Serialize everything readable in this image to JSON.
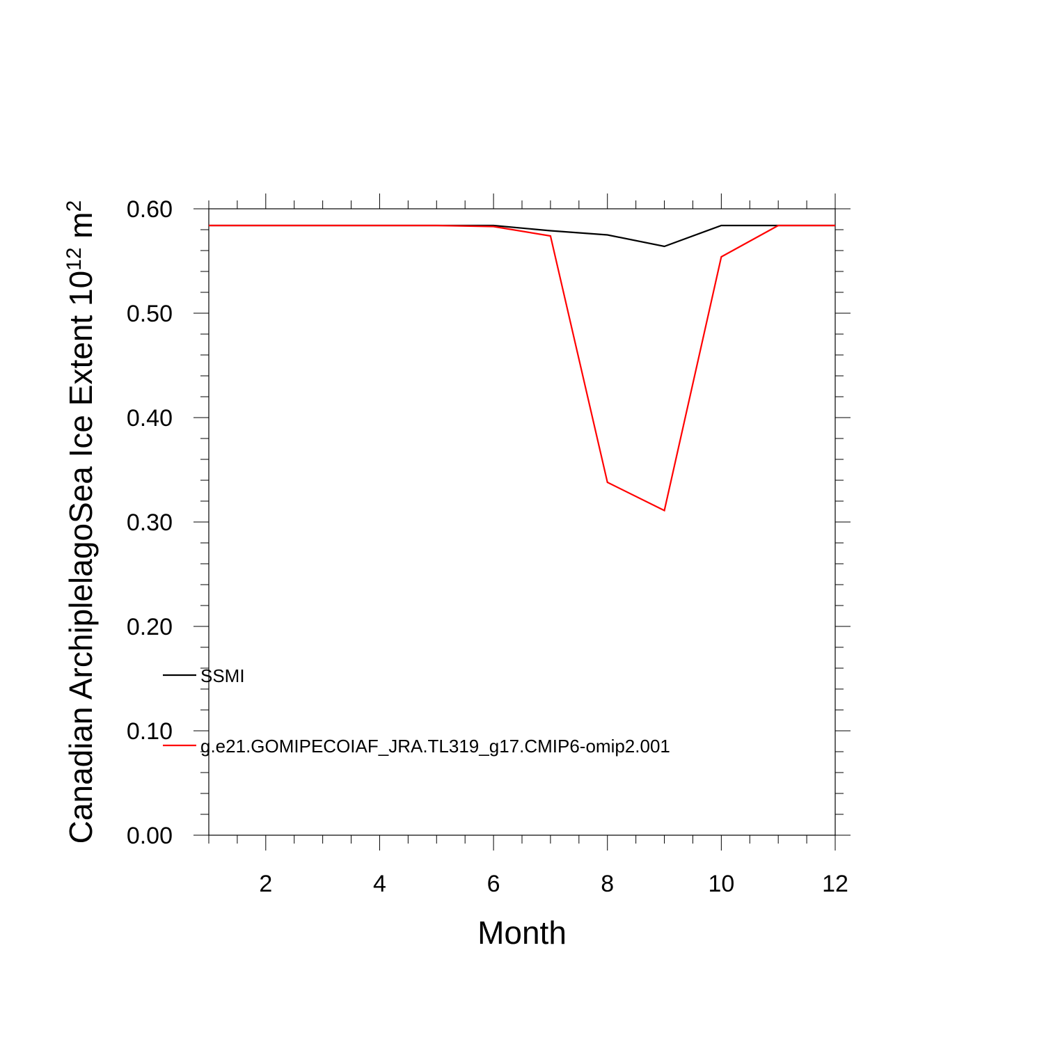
{
  "chart_data": {
    "type": "line",
    "xlabel": "Month",
    "ylabel": {
      "main": "Canadian ArchiplelagoSea Ice Extent 10",
      "exp1": "12",
      "unit": " m",
      "exp2": "2"
    },
    "xlim": [
      1,
      12
    ],
    "ylim": [
      0.0,
      0.6
    ],
    "x_ticks": [
      2,
      4,
      6,
      8,
      10,
      12
    ],
    "y_ticks": [
      0.0,
      0.1,
      0.2,
      0.3,
      0.4,
      0.5,
      0.6
    ],
    "y_tick_labels": [
      "0.00",
      "0.10",
      "0.20",
      "0.30",
      "0.40",
      "0.50",
      "0.60"
    ],
    "x": [
      1,
      2,
      3,
      4,
      5,
      6,
      7,
      8,
      9,
      10,
      11,
      12
    ],
    "series": [
      {
        "name": "SSMI",
        "color": "#000000",
        "values": [
          0.584,
          0.584,
          0.584,
          0.584,
          0.584,
          0.584,
          0.579,
          0.575,
          0.564,
          0.584,
          0.584,
          0.584
        ]
      },
      {
        "name": "g.e21.GOMIPECOIAF_JRA.TL319_g17.CMIP6-omip2.001",
        "color": "#ff0000",
        "values": [
          0.584,
          0.584,
          0.584,
          0.584,
          0.584,
          0.583,
          0.574,
          0.338,
          0.311,
          0.554,
          0.584,
          0.584
        ]
      }
    ],
    "legend_placement": "lower-left",
    "grid": false
  }
}
